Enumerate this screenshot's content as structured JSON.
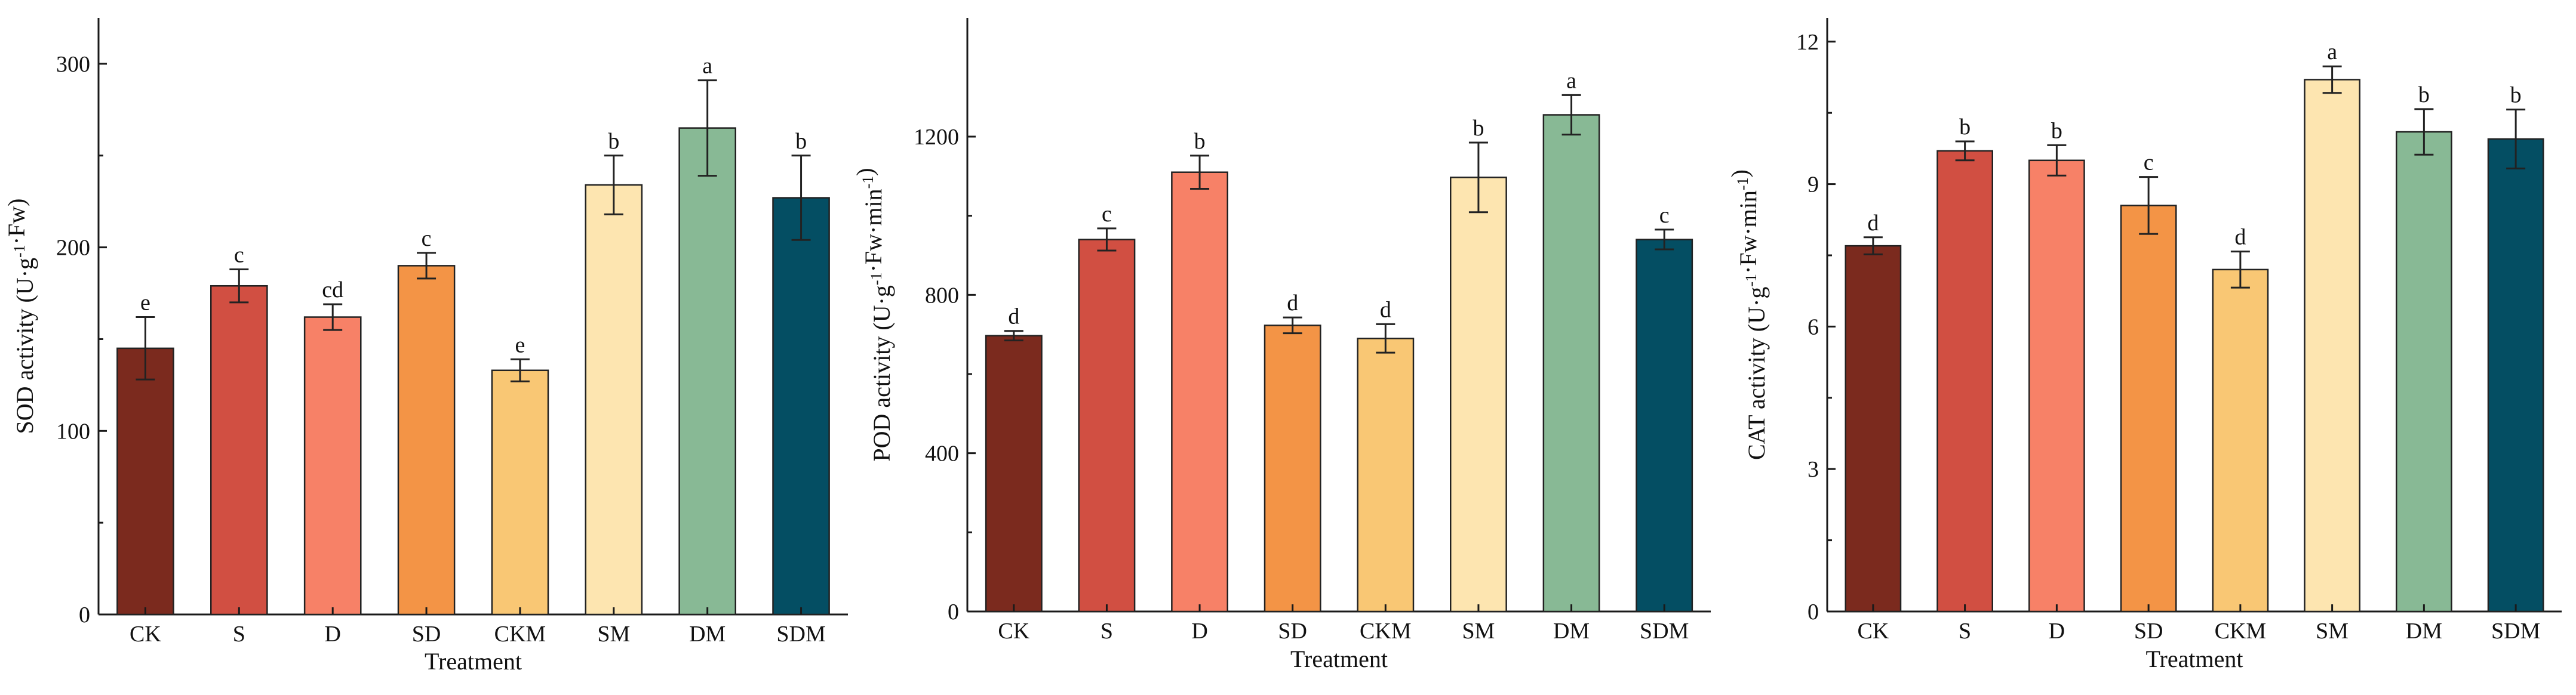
{
  "chart_data": [
    {
      "type": "bar",
      "categories": [
        "CK",
        "S",
        "D",
        "SD",
        "CKM",
        "SM",
        "DM",
        "SDM"
      ],
      "values": [
        145,
        179,
        162,
        190,
        133,
        234,
        265,
        227
      ],
      "errors": [
        17,
        9,
        7,
        7,
        6,
        16,
        26,
        23
      ],
      "letters": [
        "e",
        "c",
        "cd",
        "c",
        "e",
        "b",
        "a",
        "b"
      ],
      "colors": [
        "#7b2a1e",
        "#d14f42",
        "#f78167",
        "#f39446",
        "#f9c774",
        "#fde5b0",
        "#88b995",
        "#044e63"
      ],
      "xlabel": "Treatment",
      "ylabel": "SOD activity (U·g",
      "ylabel_sup": "-1",
      "ylabel_tail": "·Fw)",
      "ylim": [
        0,
        300
      ],
      "ymax_axis": 325,
      "yticks": [
        0,
        100,
        200,
        300
      ],
      "ytick_labels": [
        "0",
        "100",
        "200",
        "300"
      ],
      "grid": false
    },
    {
      "type": "bar",
      "categories": [
        "CK",
        "S",
        "D",
        "SD",
        "CKM",
        "SM",
        "DM",
        "SDM"
      ],
      "values": [
        697,
        940,
        1110,
        723,
        690,
        1097,
        1255,
        940
      ],
      "errors": [
        12,
        28,
        42,
        20,
        36,
        88,
        50,
        25
      ],
      "letters": [
        "d",
        "c",
        "b",
        "d",
        "d",
        "b",
        "a",
        "c"
      ],
      "colors": [
        "#7b2a1e",
        "#d14f42",
        "#f78167",
        "#f39446",
        "#f9c774",
        "#fde5b0",
        "#88b995",
        "#044e63"
      ],
      "xlabel": "Treatment",
      "ylabel": "POD activity  (U·g",
      "ylabel_sup": "-1",
      "ylabel_tail": "·Fw·min",
      "ylabel_sup2": "-1",
      "ylabel_end": ")",
      "ylim": [
        0,
        1200
      ],
      "ymax_axis": 1500,
      "yticks": [
        0,
        400,
        800,
        1200
      ],
      "ytick_labels": [
        "0",
        "400",
        "800",
        "1200"
      ],
      "grid": false
    },
    {
      "type": "bar",
      "categories": [
        "CK",
        "S",
        "D",
        "SD",
        "CKM",
        "SM",
        "DM",
        "SDM"
      ],
      "values": [
        7.7,
        9.7,
        9.5,
        8.55,
        7.2,
        11.2,
        10.1,
        9.95
      ],
      "errors": [
        0.18,
        0.2,
        0.32,
        0.6,
        0.38,
        0.28,
        0.48,
        0.62
      ],
      "letters": [
        "d",
        "b",
        "b",
        "c",
        "d",
        "a",
        "b",
        "b"
      ],
      "colors": [
        "#7b2a1e",
        "#d14f42",
        "#f78167",
        "#f39446",
        "#f9c774",
        "#fde5b0",
        "#88b995",
        "#044e63"
      ],
      "xlabel": "Treatment",
      "ylabel": "CAT activity  (U·g",
      "ylabel_sup": "-1",
      "ylabel_tail": "·Fw·min",
      "ylabel_sup2": "-1",
      "ylabel_end": ")",
      "ylim": [
        0,
        12
      ],
      "ymax_axis": 12.5,
      "yticks": [
        0,
        3,
        6,
        9,
        12
      ],
      "ytick_labels": [
        "0",
        "3",
        "6",
        "9",
        "12"
      ],
      "grid": false
    }
  ]
}
